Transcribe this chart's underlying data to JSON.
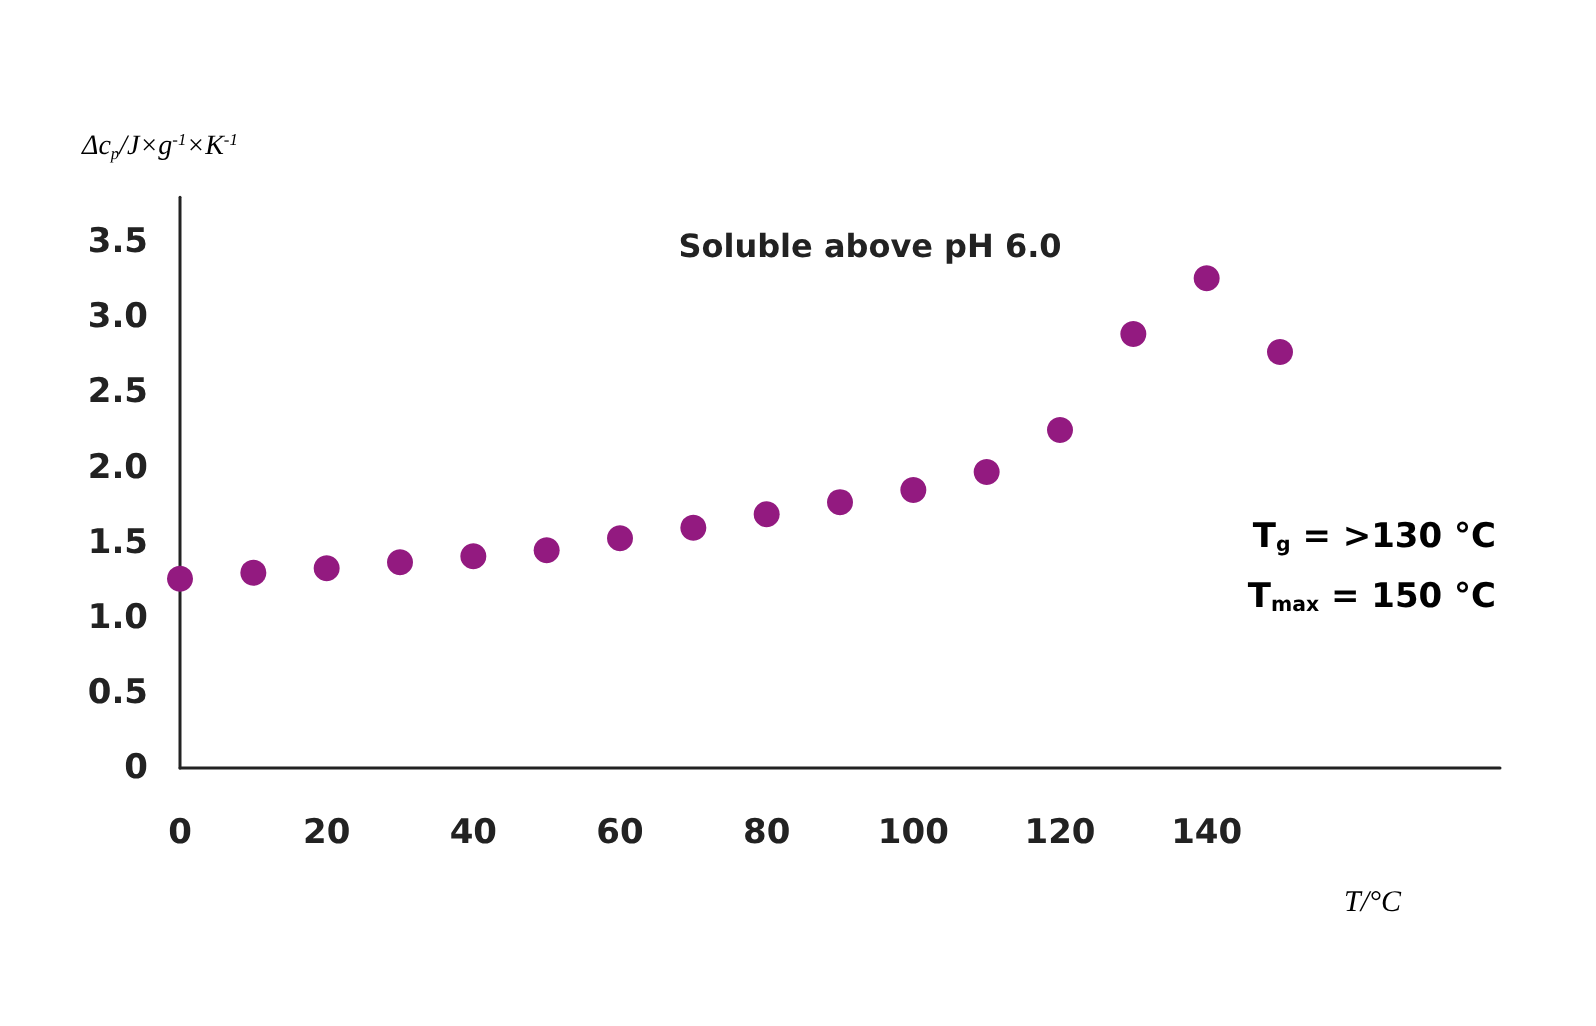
{
  "chart_data": {
    "type": "scatter",
    "title": "Soluble above pH 6.0",
    "xlabel": "T/°C",
    "ylabel": "Δc$_{p}$/J×g$^{-1}$×K$^{-1}$",
    "x": [
      0,
      10,
      20,
      30,
      40,
      50,
      60,
      70,
      80,
      90,
      100,
      110,
      120,
      130,
      140,
      150
    ],
    "series": [
      {
        "color": "#931a80",
        "values": [
          1.26,
          1.3,
          1.33,
          1.37,
          1.41,
          1.45,
          1.53,
          1.6,
          1.69,
          1.77,
          1.85,
          1.97,
          2.25,
          2.89,
          3.26,
          2.77
        ]
      }
    ],
    "xlim": [
      0,
      180
    ],
    "xticks": [
      0,
      20,
      40,
      60,
      80,
      100,
      120,
      140
    ],
    "ylim": [
      0,
      3.8
    ],
    "yticks": [
      0,
      0.5,
      {
        "value": 1,
        "label": "1.0"
      },
      1.5,
      {
        "value": 2,
        "label": "2.0"
      },
      2.5,
      {
        "value": 3,
        "label": "3.0"
      },
      3.5
    ],
    "annotations": [
      "T$_{g}$ = >130 °C",
      "T$_{max}$ = 150 °C"
    ],
    "grid": false,
    "marker": "circle"
  }
}
